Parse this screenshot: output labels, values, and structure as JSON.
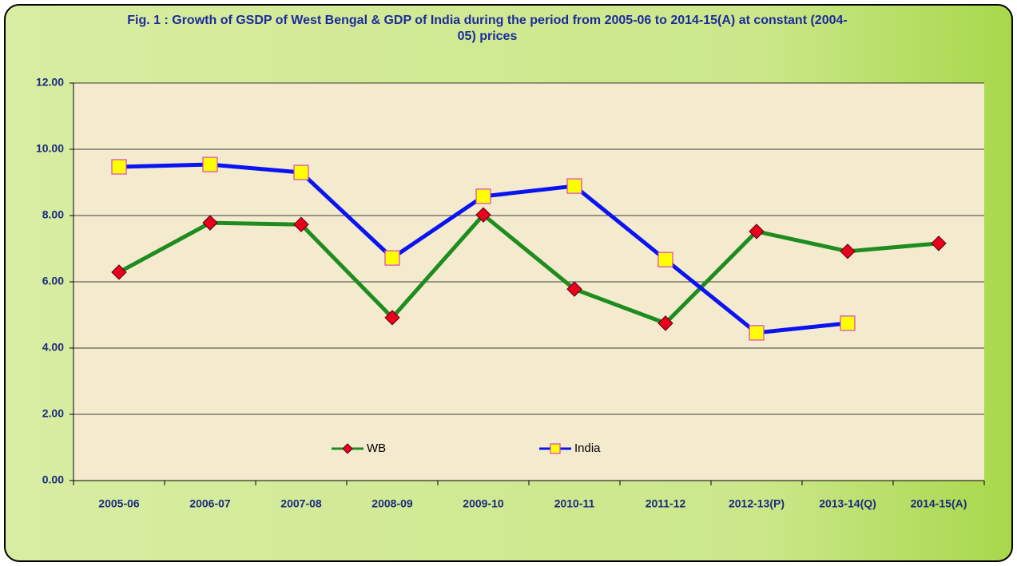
{
  "chart_data": {
    "type": "line",
    "title": "Fig. 1 : Growth of GSDP of West Bengal & GDP of India during the period from 2005-06 to 2014-15(A) at constant (2004-05) prices",
    "categories": [
      "2005-06",
      "2006-07",
      "2007-08",
      "2008-09",
      "2009-10",
      "2010-11",
      "2011-12",
      "2012-13(P)",
      "2013-14(Q)",
      "2014-15(A)"
    ],
    "series": [
      {
        "name": "WB",
        "color": "#1f8c1f",
        "marker_color": "#e8001c",
        "values": [
          6.29,
          7.78,
          7.73,
          4.92,
          8.02,
          5.78,
          4.75,
          7.52,
          6.92,
          7.16
        ]
      },
      {
        "name": "India",
        "color": "#0a14f0",
        "marker_color": "#ffff00",
        "values": [
          9.47,
          9.54,
          9.3,
          6.72,
          8.58,
          8.89,
          6.67,
          4.46,
          4.75,
          null
        ]
      }
    ],
    "ylim": [
      0,
      12
    ],
    "yticks": [
      {
        "value": 0,
        "label": "0.00"
      },
      {
        "value": 2,
        "label": "2.00"
      },
      {
        "value": 4,
        "label": "4.00"
      },
      {
        "value": 6,
        "label": "6.00"
      },
      {
        "value": 8,
        "label": "8.00"
      },
      {
        "value": 10,
        "label": "10.00"
      },
      {
        "value": 12,
        "label": "12.00"
      }
    ],
    "grid": true
  }
}
